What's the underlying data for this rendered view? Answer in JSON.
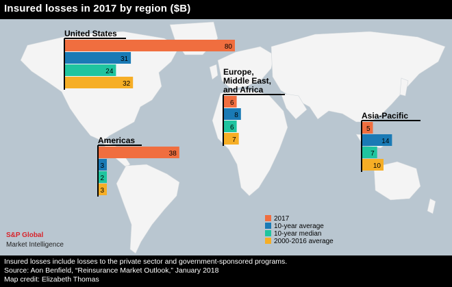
{
  "header": {
    "title": "Insured losses in 2017 by region ($B)"
  },
  "chart_data": {
    "type": "bar",
    "title": "Insured losses in 2017 by region ($B)",
    "series_names": [
      "2017",
      "10-year average",
      "10-year median",
      "2000-2016 average"
    ],
    "colors": {
      "2017": "#f06e3f",
      "10-year average": "#1a7ab5",
      "10-year median": "#1fc49f",
      "2000-2016 average": "#f6ae26"
    },
    "regions": [
      {
        "name": "United States",
        "values": [
          80,
          31,
          24,
          32
        ]
      },
      {
        "name": "Europe, Middle East, and Africa",
        "values": [
          6,
          8,
          6,
          7
        ]
      },
      {
        "name": "Asia-Pacific",
        "values": [
          5,
          14,
          7,
          10
        ]
      },
      {
        "name": "Americas",
        "values": [
          38,
          3,
          2,
          3
        ]
      }
    ],
    "units": "$B"
  },
  "map": {
    "background_color": "#b9c6d0",
    "land_color": "#f4f4f4"
  },
  "legend": {
    "items": [
      "2017",
      "10-year average",
      "10-year median",
      "2000-2016 average"
    ]
  },
  "branding": {
    "line1": "S&P Global",
    "line2": "Market Intelligence",
    "accent": "#d8232a"
  },
  "footer": {
    "note": "Insured losses include losses to the private sector and government-sponsored programs.",
    "source": "Source: Aon Benfield, “Reinsurance Market Outlook,” January 2018",
    "credit": "Map credit: Elizabeth Thomas"
  }
}
